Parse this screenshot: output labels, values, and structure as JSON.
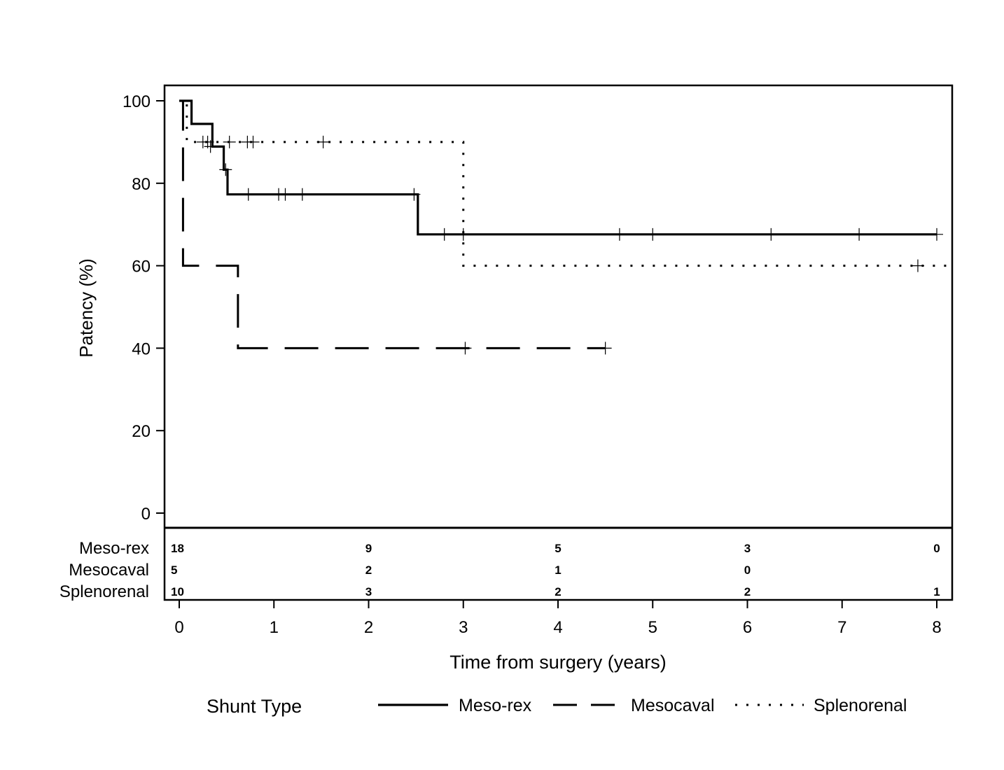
{
  "chart_data": {
    "type": "line",
    "subtype": "kaplan-meier-step",
    "xlabel": "Time from surgery (years)",
    "ylabel": "Patency (%)",
    "xlim": [
      -0.15,
      8.15
    ],
    "ylim": [
      -3.5,
      104
    ],
    "xticks": [
      0,
      1,
      2,
      3,
      4,
      5,
      6,
      7,
      8
    ],
    "yticks": [
      0,
      20,
      40,
      60,
      80,
      100
    ],
    "grid": false,
    "legend": {
      "title": "Shunt Type",
      "placement": "bottom",
      "entries": [
        "Meso-rex",
        "Mesocaval",
        "Splenorenal"
      ]
    },
    "series": [
      {
        "name": "Meso-rex",
        "line_style": "solid",
        "color": "#000000",
        "steps": [
          [
            0,
            100
          ],
          [
            0.13,
            94.4
          ],
          [
            0.35,
            88.9
          ],
          [
            0.47,
            83.3
          ],
          [
            0.51,
            77.3
          ],
          [
            2.52,
            67.6
          ],
          [
            8.0,
            67.6
          ]
        ],
        "censored": [
          [
            0.33,
            88.9
          ],
          [
            0.49,
            83.3
          ],
          [
            0.73,
            77.3
          ],
          [
            1.05,
            77.3
          ],
          [
            1.12,
            77.3
          ],
          [
            1.3,
            77.3
          ],
          [
            2.48,
            77.3
          ],
          [
            2.8,
            67.6
          ],
          [
            3.0,
            67.6
          ],
          [
            4.65,
            67.6
          ],
          [
            5.0,
            67.6
          ],
          [
            6.25,
            67.6
          ],
          [
            7.18,
            67.6
          ],
          [
            8.0,
            67.6
          ]
        ]
      },
      {
        "name": "Mesocaval",
        "line_style": "dashed",
        "color": "#000000",
        "steps": [
          [
            0,
            100
          ],
          [
            0.04,
            60
          ],
          [
            0.62,
            40
          ],
          [
            4.5,
            40
          ]
        ],
        "censored": [
          [
            3.02,
            40
          ],
          [
            4.5,
            40
          ]
        ]
      },
      {
        "name": "Splenorenal",
        "line_style": "dotted",
        "color": "#000000",
        "steps": [
          [
            0,
            100
          ],
          [
            0.08,
            90
          ],
          [
            3.0,
            60
          ],
          [
            8.15,
            60
          ]
        ],
        "censored": [
          [
            0.25,
            90
          ],
          [
            0.3,
            90
          ],
          [
            0.53,
            90
          ],
          [
            0.72,
            90
          ],
          [
            0.78,
            90
          ],
          [
            1.52,
            90
          ],
          [
            7.8,
            60
          ]
        ]
      }
    ],
    "risk_table": {
      "x": [
        0,
        2,
        4,
        6,
        8
      ],
      "rows": [
        {
          "label": "Meso-rex",
          "values": [
            "18",
            "9",
            "5",
            "3",
            "0"
          ]
        },
        {
          "label": "Mesocaval",
          "values": [
            "5",
            "2",
            "1",
            "0",
            ""
          ]
        },
        {
          "label": "Splenorenal",
          "values": [
            "10",
            "3",
            "2",
            "2",
            "1"
          ]
        }
      ]
    }
  }
}
